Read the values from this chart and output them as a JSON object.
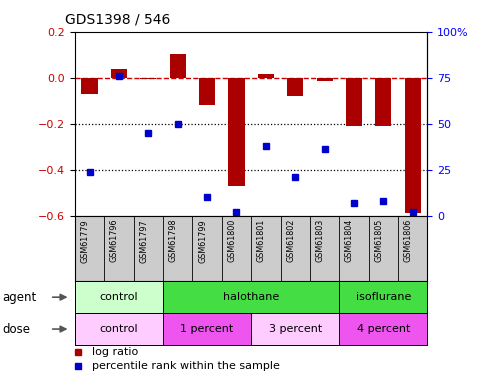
{
  "title": "GDS1398 / 546",
  "samples": [
    "GSM61779",
    "GSM61796",
    "GSM61797",
    "GSM61798",
    "GSM61799",
    "GSM61800",
    "GSM61801",
    "GSM61802",
    "GSM61803",
    "GSM61804",
    "GSM61805",
    "GSM61806"
  ],
  "log_ratio": [
    -0.07,
    0.04,
    -0.005,
    0.105,
    -0.12,
    -0.47,
    0.015,
    -0.08,
    -0.015,
    -0.21,
    -0.21,
    -0.59
  ],
  "percentile_rank": [
    24,
    76,
    45,
    50,
    10,
    2,
    38,
    21,
    36,
    7,
    8,
    2
  ],
  "bar_color": "#aa0000",
  "dot_color": "#0000cc",
  "ylim_left": [
    -0.6,
    0.2
  ],
  "ylim_right": [
    0,
    100
  ],
  "left_ticks": [
    -0.6,
    -0.4,
    -0.2,
    0.0,
    0.2
  ],
  "right_ticks": [
    0,
    25,
    50,
    75,
    100
  ],
  "right_tick_labels": [
    "0",
    "25",
    "50",
    "75",
    "100%"
  ],
  "dotline_y": [
    -0.2,
    -0.4
  ],
  "agent_groups": [
    {
      "label": "control",
      "start": 0,
      "end": 3,
      "color": "#ccffcc"
    },
    {
      "label": "halothane",
      "start": 3,
      "end": 9,
      "color": "#44dd44"
    },
    {
      "label": "isoflurane",
      "start": 9,
      "end": 12,
      "color": "#44dd44"
    }
  ],
  "dose_groups": [
    {
      "label": "control",
      "start": 0,
      "end": 3,
      "color": "#ffccff"
    },
    {
      "label": "1 percent",
      "start": 3,
      "end": 6,
      "color": "#ee55ee"
    },
    {
      "label": "3 percent",
      "start": 6,
      "end": 9,
      "color": "#ffccff"
    },
    {
      "label": "4 percent",
      "start": 9,
      "end": 12,
      "color": "#ee55ee"
    }
  ],
  "legend_logratio": "log ratio",
  "legend_percentile": "percentile rank within the sample",
  "agent_label": "agent",
  "dose_label": "dose",
  "bg_color": "#ffffff",
  "sample_bg": "#cccccc"
}
